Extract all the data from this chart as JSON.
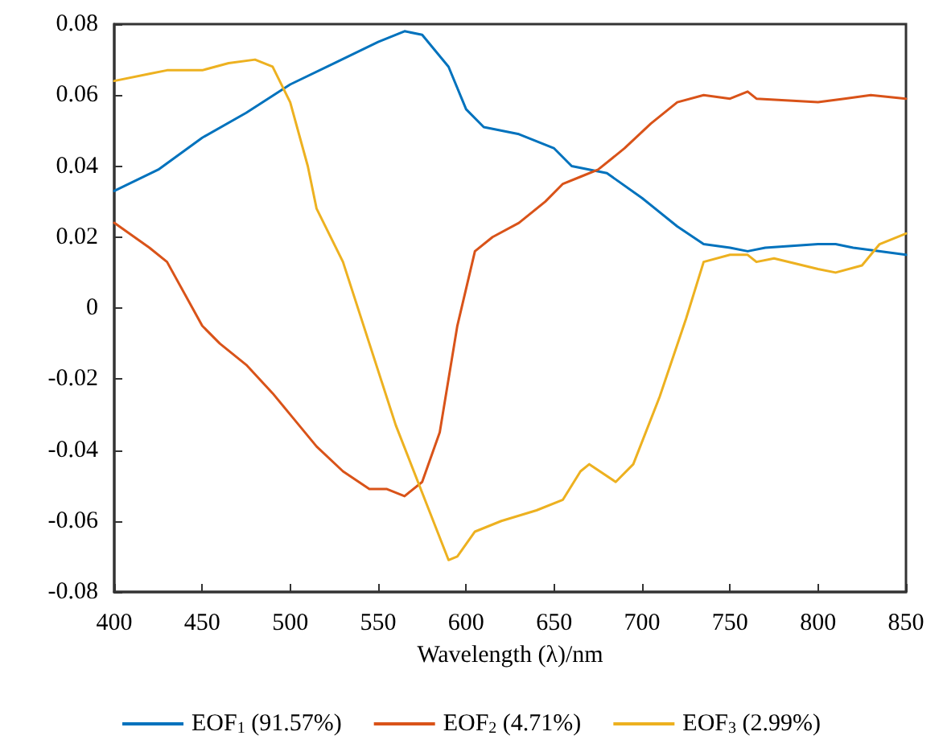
{
  "chart_data": {
    "type": "line",
    "xlabel": "Wavelength (λ)/nm",
    "xlim": [
      400,
      850
    ],
    "xticks": [
      400,
      450,
      500,
      550,
      600,
      650,
      700,
      750,
      800,
      850
    ],
    "ylim": [
      -0.08,
      0.08
    ],
    "yticks": [
      -0.08,
      -0.06,
      -0.04,
      -0.02,
      0,
      0.02,
      0.04,
      0.06,
      0.08
    ],
    "grid": false,
    "legend": "bottom",
    "marker": "none",
    "line_style": "solid",
    "series": [
      {
        "name": "EOF$_{1}$ (91.57%)",
        "color": "#0072bd",
        "x": [
          400,
          425,
          450,
          475,
          500,
          525,
          550,
          565,
          575,
          590,
          600,
          610,
          630,
          650,
          660,
          680,
          700,
          720,
          735,
          750,
          760,
          770,
          800,
          810,
          820,
          850
        ],
        "values": [
          0.033,
          0.039,
          0.048,
          0.055,
          0.063,
          0.069,
          0.075,
          0.078,
          0.077,
          0.068,
          0.056,
          0.051,
          0.049,
          0.045,
          0.04,
          0.038,
          0.031,
          0.023,
          0.018,
          0.017,
          0.016,
          0.017,
          0.018,
          0.018,
          0.017,
          0.015
        ]
      },
      {
        "name": "EOF$_{2}$ (4.71%)",
        "color": "#d95319",
        "x": [
          400,
          420,
          430,
          450,
          460,
          475,
          490,
          500,
          515,
          530,
          545,
          555,
          565,
          575,
          585,
          595,
          605,
          615,
          630,
          645,
          655,
          665,
          675,
          690,
          705,
          720,
          735,
          750,
          760,
          765,
          800,
          815,
          830,
          850
        ],
        "values": [
          0.024,
          0.017,
          0.013,
          -0.005,
          -0.01,
          -0.016,
          -0.024,
          -0.03,
          -0.039,
          -0.046,
          -0.051,
          -0.051,
          -0.053,
          -0.049,
          -0.035,
          -0.005,
          0.016,
          0.02,
          0.024,
          0.03,
          0.035,
          0.037,
          0.039,
          0.045,
          0.052,
          0.058,
          0.06,
          0.059,
          0.061,
          0.059,
          0.058,
          0.059,
          0.06,
          0.059
        ]
      },
      {
        "name": "EOF$_{3}$ (2.99%)",
        "color": "#edb120",
        "x": [
          400,
          420,
          430,
          450,
          465,
          480,
          490,
          500,
          510,
          515,
          530,
          545,
          560,
          575,
          590,
          595,
          605,
          620,
          640,
          655,
          665,
          670,
          685,
          695,
          710,
          725,
          735,
          750,
          760,
          765,
          775,
          800,
          810,
          825,
          835,
          850
        ],
        "values": [
          0.064,
          0.066,
          0.067,
          0.067,
          0.069,
          0.07,
          0.068,
          0.058,
          0.04,
          0.028,
          0.013,
          -0.01,
          -0.033,
          -0.052,
          -0.071,
          -0.07,
          -0.063,
          -0.06,
          -0.057,
          -0.054,
          -0.046,
          -0.044,
          -0.049,
          -0.044,
          -0.025,
          -0.003,
          0.013,
          0.015,
          0.015,
          0.013,
          0.014,
          0.011,
          0.01,
          0.012,
          0.018,
          0.021
        ]
      }
    ]
  }
}
